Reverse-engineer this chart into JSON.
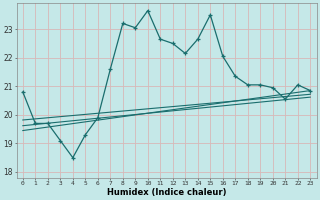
{
  "title": "",
  "xlabel": "Humidex (Indice chaleur)",
  "ylabel": "",
  "bg_color": "#c5e8e8",
  "grid_color": "#d8b8b8",
  "line_color": "#1a6e6e",
  "xlim": [
    -0.5,
    23.5
  ],
  "ylim": [
    17.8,
    23.9
  ],
  "yticks": [
    18,
    19,
    20,
    21,
    22,
    23
  ],
  "xticks": [
    0,
    1,
    2,
    3,
    4,
    5,
    6,
    7,
    8,
    9,
    10,
    11,
    12,
    13,
    14,
    15,
    16,
    17,
    18,
    19,
    20,
    21,
    22,
    23
  ],
  "main_line_x": [
    0,
    1,
    2,
    3,
    4,
    5,
    6,
    7,
    8,
    9,
    10,
    11,
    12,
    13,
    14,
    15,
    16,
    17,
    18,
    19,
    20,
    21,
    22,
    23
  ],
  "main_line_y": [
    20.8,
    19.7,
    19.7,
    19.1,
    18.5,
    19.3,
    19.9,
    21.6,
    23.2,
    23.05,
    23.65,
    22.65,
    22.5,
    22.15,
    22.65,
    23.5,
    22.05,
    21.35,
    21.05,
    21.05,
    20.95,
    20.55,
    21.05,
    20.85
  ],
  "reg_line1_y0": 19.62,
  "reg_line1_y1": 20.62,
  "reg_line2_y0": 19.82,
  "reg_line2_y1": 20.72,
  "reg_line3_y0": 19.45,
  "reg_line3_y1": 20.85
}
